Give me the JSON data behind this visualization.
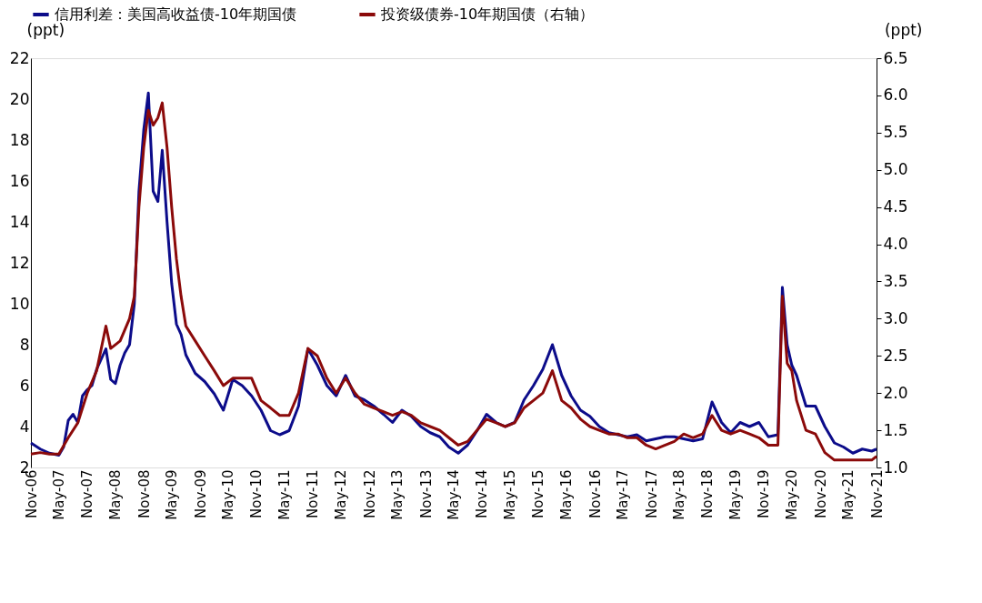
{
  "chart_data": {
    "type": "line",
    "ylabel": "(ppt)",
    "y2label": "(ppt)",
    "legend": "top",
    "grid": false,
    "marker": "none",
    "line_style": "solid",
    "xlim": [
      "2006-11",
      "2021-11"
    ],
    "xticks": [
      {
        "value": "2006-11",
        "label": "Nov-06"
      },
      {
        "value": "2007-05",
        "label": "May-07"
      },
      {
        "value": "2007-11",
        "label": "Nov-07"
      },
      {
        "value": "2008-05",
        "label": "May-08"
      },
      {
        "value": "2008-11",
        "label": "Nov-08"
      },
      {
        "value": "2009-05",
        "label": "May-09"
      },
      {
        "value": "2009-11",
        "label": "Nov-09"
      },
      {
        "value": "2010-05",
        "label": "May-10"
      },
      {
        "value": "2010-11",
        "label": "Nov-10"
      },
      {
        "value": "2011-05",
        "label": "May-11"
      },
      {
        "value": "2011-11",
        "label": "Nov-11"
      },
      {
        "value": "2012-05",
        "label": "May-12"
      },
      {
        "value": "2012-11",
        "label": "Nov-12"
      },
      {
        "value": "2013-05",
        "label": "May-13"
      },
      {
        "value": "2013-11",
        "label": "Nov-13"
      },
      {
        "value": "2014-05",
        "label": "May-14"
      },
      {
        "value": "2014-11",
        "label": "Nov-14"
      },
      {
        "value": "2015-05",
        "label": "May-15"
      },
      {
        "value": "2015-11",
        "label": "Nov-15"
      },
      {
        "value": "2016-05",
        "label": "May-16"
      },
      {
        "value": "2016-11",
        "label": "Nov-16"
      },
      {
        "value": "2017-05",
        "label": "May-17"
      },
      {
        "value": "2017-11",
        "label": "Nov-17"
      },
      {
        "value": "2018-05",
        "label": "May-18"
      },
      {
        "value": "2018-11",
        "label": "Nov-18"
      },
      {
        "value": "2019-05",
        "label": "May-19"
      },
      {
        "value": "2019-11",
        "label": "Nov-19"
      },
      {
        "value": "2020-05",
        "label": "May-20"
      },
      {
        "value": "2020-11",
        "label": "Nov-20"
      },
      {
        "value": "2021-05",
        "label": "May-21"
      },
      {
        "value": "2021-11",
        "label": "Nov-21"
      }
    ],
    "ylim": [
      2,
      22
    ],
    "yticks": [
      2,
      4,
      6,
      8,
      10,
      12,
      14,
      16,
      18,
      20,
      22
    ],
    "y2lim": [
      1,
      6.5
    ],
    "y2ticks": [
      {
        "value": 1,
        "label": "1.0"
      },
      1.5,
      {
        "value": 2,
        "label": "2.0"
      },
      2.5,
      {
        "value": 3,
        "label": "3.0"
      },
      3.5,
      {
        "value": 4,
        "label": "4.0"
      },
      4.5,
      {
        "value": 5,
        "label": "5.0"
      },
      5.5,
      {
        "value": 6,
        "label": "6.0"
      },
      6.5
    ],
    "series": [
      {
        "name": "信用利差：美国高收益债-10年期国债",
        "color": "#0c0c8a",
        "x": [
          "2006-11",
          "2007-01",
          "2007-03",
          "2007-05",
          "2007-06",
          "2007-07",
          "2007-08",
          "2007-09",
          "2007-10",
          "2007-11",
          "2007-12",
          "2008-01",
          "2008-03",
          "2008-04",
          "2008-05",
          "2008-06",
          "2008-07",
          "2008-08",
          "2008-09",
          "2008-10",
          "2008-11",
          "2008-12",
          "2009-01",
          "2009-02",
          "2009-03",
          "2009-04",
          "2009-05",
          "2009-06",
          "2009-07",
          "2009-08",
          "2009-10",
          "2009-12",
          "2010-02",
          "2010-04",
          "2010-06",
          "2010-08",
          "2010-10",
          "2010-12",
          "2011-02",
          "2011-04",
          "2011-06",
          "2011-08",
          "2011-10",
          "2011-12",
          "2012-02",
          "2012-04",
          "2012-06",
          "2012-08",
          "2012-10",
          "2012-12",
          "2013-02",
          "2013-04",
          "2013-06",
          "2013-08",
          "2013-10",
          "2013-12",
          "2014-02",
          "2014-04",
          "2014-06",
          "2014-08",
          "2014-10",
          "2014-12",
          "2015-02",
          "2015-04",
          "2015-06",
          "2015-08",
          "2015-10",
          "2015-12",
          "2016-02",
          "2016-04",
          "2016-06",
          "2016-08",
          "2016-10",
          "2016-12",
          "2017-02",
          "2017-04",
          "2017-06",
          "2017-08",
          "2017-10",
          "2017-12",
          "2018-02",
          "2018-04",
          "2018-06",
          "2018-08",
          "2018-10",
          "2018-12",
          "2019-02",
          "2019-04",
          "2019-06",
          "2019-08",
          "2019-10",
          "2019-12",
          "2020-02",
          "2020-03",
          "2020-04",
          "2020-05",
          "2020-06",
          "2020-08",
          "2020-10",
          "2020-12",
          "2021-02",
          "2021-04",
          "2021-06",
          "2021-08",
          "2021-10",
          "2021-11"
        ],
        "values": [
          3.2,
          2.9,
          2.7,
          2.6,
          3.0,
          4.3,
          4.6,
          4.2,
          5.5,
          5.8,
          6.0,
          6.8,
          7.8,
          6.3,
          6.1,
          7.0,
          7.6,
          8.0,
          10.0,
          15.5,
          18.5,
          20.3,
          15.5,
          15.0,
          17.5,
          14.0,
          11.0,
          9.0,
          8.5,
          7.5,
          6.6,
          6.2,
          5.6,
          4.8,
          6.3,
          6.0,
          5.5,
          4.8,
          3.8,
          3.6,
          3.8,
          5.0,
          7.8,
          7.0,
          6.0,
          5.5,
          6.5,
          5.5,
          5.3,
          5.0,
          4.6,
          4.2,
          4.8,
          4.5,
          4.0,
          3.7,
          3.5,
          3.0,
          2.7,
          3.1,
          3.8,
          4.6,
          4.2,
          4.0,
          4.2,
          5.3,
          6.0,
          6.8,
          8.0,
          6.5,
          5.5,
          4.8,
          4.5,
          4.0,
          3.7,
          3.6,
          3.5,
          3.6,
          3.3,
          3.4,
          3.5,
          3.5,
          3.4,
          3.3,
          3.4,
          5.2,
          4.2,
          3.7,
          4.2,
          4.0,
          4.2,
          3.5,
          3.6,
          10.8,
          8.0,
          7.0,
          6.5,
          5.0,
          5.0,
          4.0,
          3.2,
          3.0,
          2.7,
          2.9,
          2.8,
          2.9
        ]
      },
      {
        "name": "投资级债券-10年期国债（右轴）",
        "color": "#8b0a0a",
        "axis": "y2",
        "x": [
          "2006-11",
          "2007-01",
          "2007-03",
          "2007-05",
          "2007-07",
          "2007-09",
          "2007-11",
          "2008-01",
          "2008-03",
          "2008-04",
          "2008-06",
          "2008-08",
          "2008-09",
          "2008-10",
          "2008-11",
          "2008-12",
          "2009-01",
          "2009-02",
          "2009-03",
          "2009-04",
          "2009-05",
          "2009-06",
          "2009-07",
          "2009-08",
          "2009-10",
          "2009-12",
          "2010-02",
          "2010-04",
          "2010-06",
          "2010-08",
          "2010-10",
          "2010-12",
          "2011-02",
          "2011-04",
          "2011-06",
          "2011-08",
          "2011-10",
          "2011-12",
          "2012-02",
          "2012-04",
          "2012-06",
          "2012-08",
          "2012-10",
          "2012-12",
          "2013-02",
          "2013-04",
          "2013-06",
          "2013-08",
          "2013-10",
          "2013-12",
          "2014-02",
          "2014-04",
          "2014-06",
          "2014-08",
          "2014-10",
          "2014-12",
          "2015-02",
          "2015-04",
          "2015-06",
          "2015-08",
          "2015-10",
          "2015-12",
          "2016-02",
          "2016-04",
          "2016-06",
          "2016-08",
          "2016-10",
          "2016-12",
          "2017-02",
          "2017-04",
          "2017-06",
          "2017-08",
          "2017-10",
          "2017-12",
          "2018-02",
          "2018-04",
          "2018-06",
          "2018-08",
          "2018-10",
          "2018-12",
          "2019-02",
          "2019-04",
          "2019-06",
          "2019-08",
          "2019-10",
          "2019-12",
          "2020-02",
          "2020-03",
          "2020-04",
          "2020-05",
          "2020-06",
          "2020-08",
          "2020-10",
          "2020-12",
          "2021-02",
          "2021-04",
          "2021-06",
          "2021-08",
          "2021-10",
          "2021-11"
        ],
        "values": [
          1.18,
          1.2,
          1.18,
          1.18,
          1.4,
          1.6,
          2.0,
          2.3,
          2.9,
          2.6,
          2.7,
          3.0,
          3.3,
          4.5,
          5.3,
          5.8,
          5.6,
          5.7,
          5.9,
          5.3,
          4.5,
          3.8,
          3.3,
          2.9,
          2.7,
          2.5,
          2.3,
          2.1,
          2.2,
          2.2,
          2.2,
          1.9,
          1.8,
          1.7,
          1.7,
          2.0,
          2.6,
          2.5,
          2.2,
          2.0,
          2.2,
          2.0,
          1.85,
          1.8,
          1.75,
          1.7,
          1.75,
          1.7,
          1.6,
          1.55,
          1.5,
          1.4,
          1.3,
          1.35,
          1.5,
          1.65,
          1.6,
          1.55,
          1.6,
          1.8,
          1.9,
          2.0,
          2.3,
          1.9,
          1.8,
          1.65,
          1.55,
          1.5,
          1.45,
          1.45,
          1.4,
          1.4,
          1.3,
          1.25,
          1.3,
          1.35,
          1.45,
          1.4,
          1.45,
          1.7,
          1.5,
          1.45,
          1.5,
          1.45,
          1.4,
          1.3,
          1.3,
          3.3,
          2.4,
          2.3,
          1.9,
          1.5,
          1.45,
          1.2,
          1.1,
          1.1,
          1.1,
          1.1,
          1.1,
          1.15
        ]
      }
    ]
  }
}
